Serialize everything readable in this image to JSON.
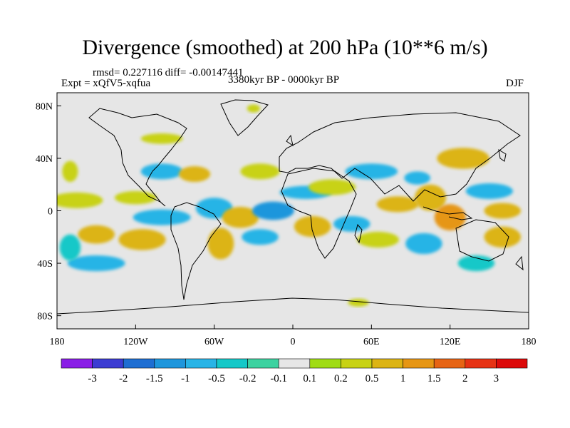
{
  "title": "Divergence (smoothed) at 200 hPa (10**6 m/s)",
  "stats": "rmsd= 0.227116 diff= -0.00147441",
  "experiment": "Expt = xQfV5-xqfua",
  "period": "3380kyr BP - 0000kyr BP",
  "season": "DJF",
  "colors": {
    "land_background": "#e6e6e6",
    "coastline": "#000000",
    "palette": [
      "#8a1ee6",
      "#3c3cd2",
      "#1e6ed2",
      "#1e96dc",
      "#28b4e6",
      "#14c8c8",
      "#3cd2a0",
      "#e6e6e6",
      "#a0dc14",
      "#c8d214",
      "#dcb414",
      "#e69614",
      "#e66414",
      "#e63214",
      "#dc0a0a"
    ]
  },
  "chart_data": {
    "type": "heatmap",
    "variable": "Divergence (smoothed) at 200 hPa",
    "units": "10**6 m/s",
    "xaxis": {
      "range": [
        -180,
        180
      ],
      "ticks": [
        -180,
        -120,
        -60,
        0,
        60,
        120,
        180
      ],
      "tick_labels": [
        "180",
        "120W",
        "60W",
        "0",
        "60E",
        "120E",
        "180"
      ]
    },
    "yaxis": {
      "range": [
        -90,
        90
      ],
      "ticks": [
        80,
        40,
        0,
        -40,
        -80
      ],
      "tick_labels": [
        "80N",
        "40N",
        "0",
        "40S",
        "80S"
      ]
    },
    "colorbar": {
      "levels": [
        "-3",
        "-2",
        "-1.5",
        "-1",
        "-0.5",
        "-0.2",
        "-0.1",
        "0.1",
        "0.2",
        "0.5",
        "1",
        "1.5",
        "2",
        "3"
      ]
    },
    "features": [
      {
        "lon": -150,
        "lat": -18,
        "value": 1.0,
        "rx": 14,
        "ry": 7
      },
      {
        "lon": -115,
        "lat": -22,
        "value": 0.6,
        "rx": 18,
        "ry": 8
      },
      {
        "lon": -150,
        "lat": -40,
        "value": -0.6,
        "rx": 22,
        "ry": 6
      },
      {
        "lon": -170,
        "lat": -28,
        "value": -0.4,
        "rx": 8,
        "ry": 10
      },
      {
        "lon": -100,
        "lat": -5,
        "value": -0.5,
        "rx": 22,
        "ry": 6
      },
      {
        "lon": -165,
        "lat": 8,
        "value": 0.4,
        "rx": 20,
        "ry": 6
      },
      {
        "lon": -120,
        "lat": 10,
        "value": 0.5,
        "rx": 16,
        "ry": 5
      },
      {
        "lon": -100,
        "lat": 30,
        "value": -0.6,
        "rx": 16,
        "ry": 6
      },
      {
        "lon": -75,
        "lat": 28,
        "value": 0.8,
        "rx": 12,
        "ry": 6
      },
      {
        "lon": -60,
        "lat": 2,
        "value": -0.6,
        "rx": 14,
        "ry": 8
      },
      {
        "lon": -55,
        "lat": -25,
        "value": 0.6,
        "rx": 10,
        "ry": 12
      },
      {
        "lon": -40,
        "lat": -5,
        "value": 0.6,
        "rx": 14,
        "ry": 8
      },
      {
        "lon": -15,
        "lat": 0,
        "value": -1.0,
        "rx": 16,
        "ry": 7
      },
      {
        "lon": -25,
        "lat": -20,
        "value": -0.5,
        "rx": 14,
        "ry": 6
      },
      {
        "lon": -25,
        "lat": 30,
        "value": 0.4,
        "rx": 15,
        "ry": 6
      },
      {
        "lon": 10,
        "lat": 14,
        "value": -0.6,
        "rx": 20,
        "ry": 5
      },
      {
        "lon": 30,
        "lat": 18,
        "value": 0.5,
        "rx": 18,
        "ry": 6
      },
      {
        "lon": 60,
        "lat": 30,
        "value": -0.6,
        "rx": 20,
        "ry": 6
      },
      {
        "lon": 15,
        "lat": -12,
        "value": 0.7,
        "rx": 14,
        "ry": 8
      },
      {
        "lon": 45,
        "lat": -10,
        "value": -0.5,
        "rx": 14,
        "ry": 6
      },
      {
        "lon": 65,
        "lat": -22,
        "value": 0.5,
        "rx": 16,
        "ry": 6
      },
      {
        "lon": 80,
        "lat": 5,
        "value": 0.6,
        "rx": 16,
        "ry": 6
      },
      {
        "lon": 95,
        "lat": 25,
        "value": -0.5,
        "rx": 10,
        "ry": 5
      },
      {
        "lon": 105,
        "lat": 10,
        "value": 0.8,
        "rx": 12,
        "ry": 10
      },
      {
        "lon": 120,
        "lat": -5,
        "value": 1.5,
        "rx": 12,
        "ry": 10
      },
      {
        "lon": 130,
        "lat": 40,
        "value": 1.0,
        "rx": 20,
        "ry": 8
      },
      {
        "lon": 150,
        "lat": 15,
        "value": -0.6,
        "rx": 18,
        "ry": 6
      },
      {
        "lon": 160,
        "lat": 0,
        "value": 0.6,
        "rx": 14,
        "ry": 6
      },
      {
        "lon": 100,
        "lat": -25,
        "value": -0.6,
        "rx": 14,
        "ry": 8
      },
      {
        "lon": 160,
        "lat": -20,
        "value": 0.8,
        "rx": 14,
        "ry": 8
      },
      {
        "lon": 140,
        "lat": -40,
        "value": -0.4,
        "rx": 14,
        "ry": 6
      },
      {
        "lon": -170,
        "lat": 30,
        "value": 0.4,
        "rx": 6,
        "ry": 8
      },
      {
        "lon": -100,
        "lat": 55,
        "value": 0.4,
        "rx": 16,
        "ry": 4
      },
      {
        "lon": -30,
        "lat": 78,
        "value": 0.3,
        "rx": 5,
        "ry": 3
      },
      {
        "lon": 50,
        "lat": -70,
        "value": 0.4,
        "rx": 8,
        "ry": 3
      }
    ]
  }
}
